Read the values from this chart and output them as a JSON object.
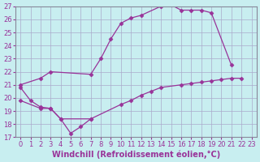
{
  "background_color": "#c8eef0",
  "grid_color": "#aaaacc",
  "line_color": "#993399",
  "xlim": [
    -0.5,
    23.5
  ],
  "ylim": [
    17,
    27
  ],
  "xlabel": "Windchill (Refroidissement éolien,°C)",
  "xlabel_fontsize": 7,
  "xticks": [
    0,
    1,
    2,
    3,
    4,
    5,
    6,
    7,
    8,
    9,
    10,
    11,
    12,
    13,
    14,
    15,
    16,
    17,
    18,
    19,
    20,
    21,
    22,
    23
  ],
  "yticks": [
    17,
    18,
    19,
    20,
    21,
    22,
    23,
    24,
    25,
    26,
    27
  ],
  "tick_fontsize": 6,
  "series1_x": [
    0,
    1,
    2,
    3,
    4,
    5,
    6,
    7
  ],
  "series1_y": [
    20.8,
    19.8,
    19.3,
    19.2,
    18.4,
    17.3,
    17.8,
    18.4
  ],
  "series2_x": [
    0,
    2,
    3,
    7,
    8,
    9,
    10,
    11,
    12,
    14,
    15,
    16,
    17,
    18,
    19,
    21
  ],
  "series2_y": [
    21.0,
    21.5,
    22.0,
    21.8,
    23.0,
    24.5,
    25.7,
    26.1,
    26.3,
    27.0,
    27.1,
    26.7,
    26.7,
    26.7,
    26.5,
    22.5
  ],
  "series3_x": [
    0,
    2,
    3,
    4,
    7,
    10,
    11,
    12,
    13,
    14,
    16,
    17,
    18,
    19,
    20,
    21,
    22
  ],
  "series3_y": [
    19.8,
    19.2,
    19.2,
    18.4,
    18.4,
    19.5,
    19.8,
    20.2,
    20.5,
    20.8,
    21.0,
    21.1,
    21.2,
    21.3,
    21.4,
    21.5,
    21.5
  ]
}
